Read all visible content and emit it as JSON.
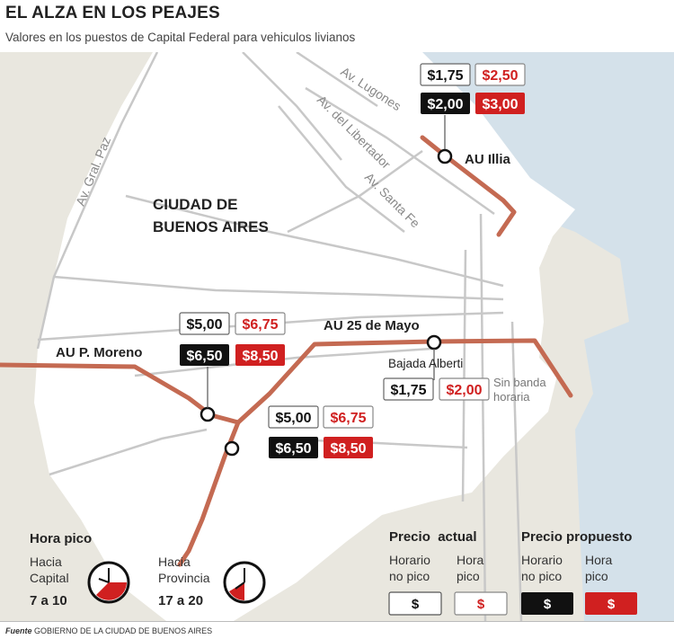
{
  "header": {
    "title": "EL ALZA EN LOS PEAJES",
    "subtitle": "Valores en los puestos de Capital Federal para vehiculos livianos"
  },
  "map": {
    "streets": {
      "gral_paz": "Av. Gral. Paz",
      "lugones": "Av. Lugones",
      "libertador": "Av. del Libertador",
      "santa_fe": "Av. Santa Fe"
    },
    "city_label_line1": "CIUDAD DE",
    "city_label_line2": "BUENOS AIRES",
    "highways": {
      "illia": "AU Illia",
      "moreno": "AU P. Moreno",
      "mayo": "AU 25 de Mayo",
      "alberti": "Bajada Alberti"
    },
    "colors": {
      "highway": "#c46a52",
      "water": "#d7e3ec",
      "land": "#e9e7df",
      "red": "#d02020"
    }
  },
  "tolls": {
    "illia": {
      "actual_no_pico": "$1,75",
      "actual_pico": "$2,50",
      "propuesto_no_pico": "$2,00",
      "propuesto_pico": "$3,00"
    },
    "moreno": {
      "actual_no_pico": "$5,00",
      "actual_pico": "$6,75",
      "propuesto_no_pico": "$6,50",
      "propuesto_pico": "$8,50"
    },
    "mayo": {
      "actual_no_pico": "$5,00",
      "actual_pico": "$6,75",
      "propuesto_no_pico": "$6,50",
      "propuesto_pico": "$8,50"
    },
    "alberti": {
      "actual": "$1,75",
      "propuesto": "$2,00",
      "note_line1": "Sin banda",
      "note_line2": "horaria"
    }
  },
  "peak": {
    "title": "Hora pico",
    "capital_line1": "Hacia",
    "capital_line2": "Capital",
    "capital_hours": "7 a 10",
    "provincia_line1": "Hacia",
    "provincia_line2": "Provincia",
    "provincia_hours": "17 a 20"
  },
  "legend": {
    "actual_title": "Precio  actual",
    "propuesto_title": "Precio propuesto",
    "no_pico_line1": "Horario",
    "no_pico_line2": "no pico",
    "pico_line1": "Hora",
    "pico_line2": "pico",
    "symbol": "$"
  },
  "footer": {
    "label": "Fuente",
    "source": "GOBIERNO DE LA CIUDAD DE BUENOS AIRES"
  }
}
